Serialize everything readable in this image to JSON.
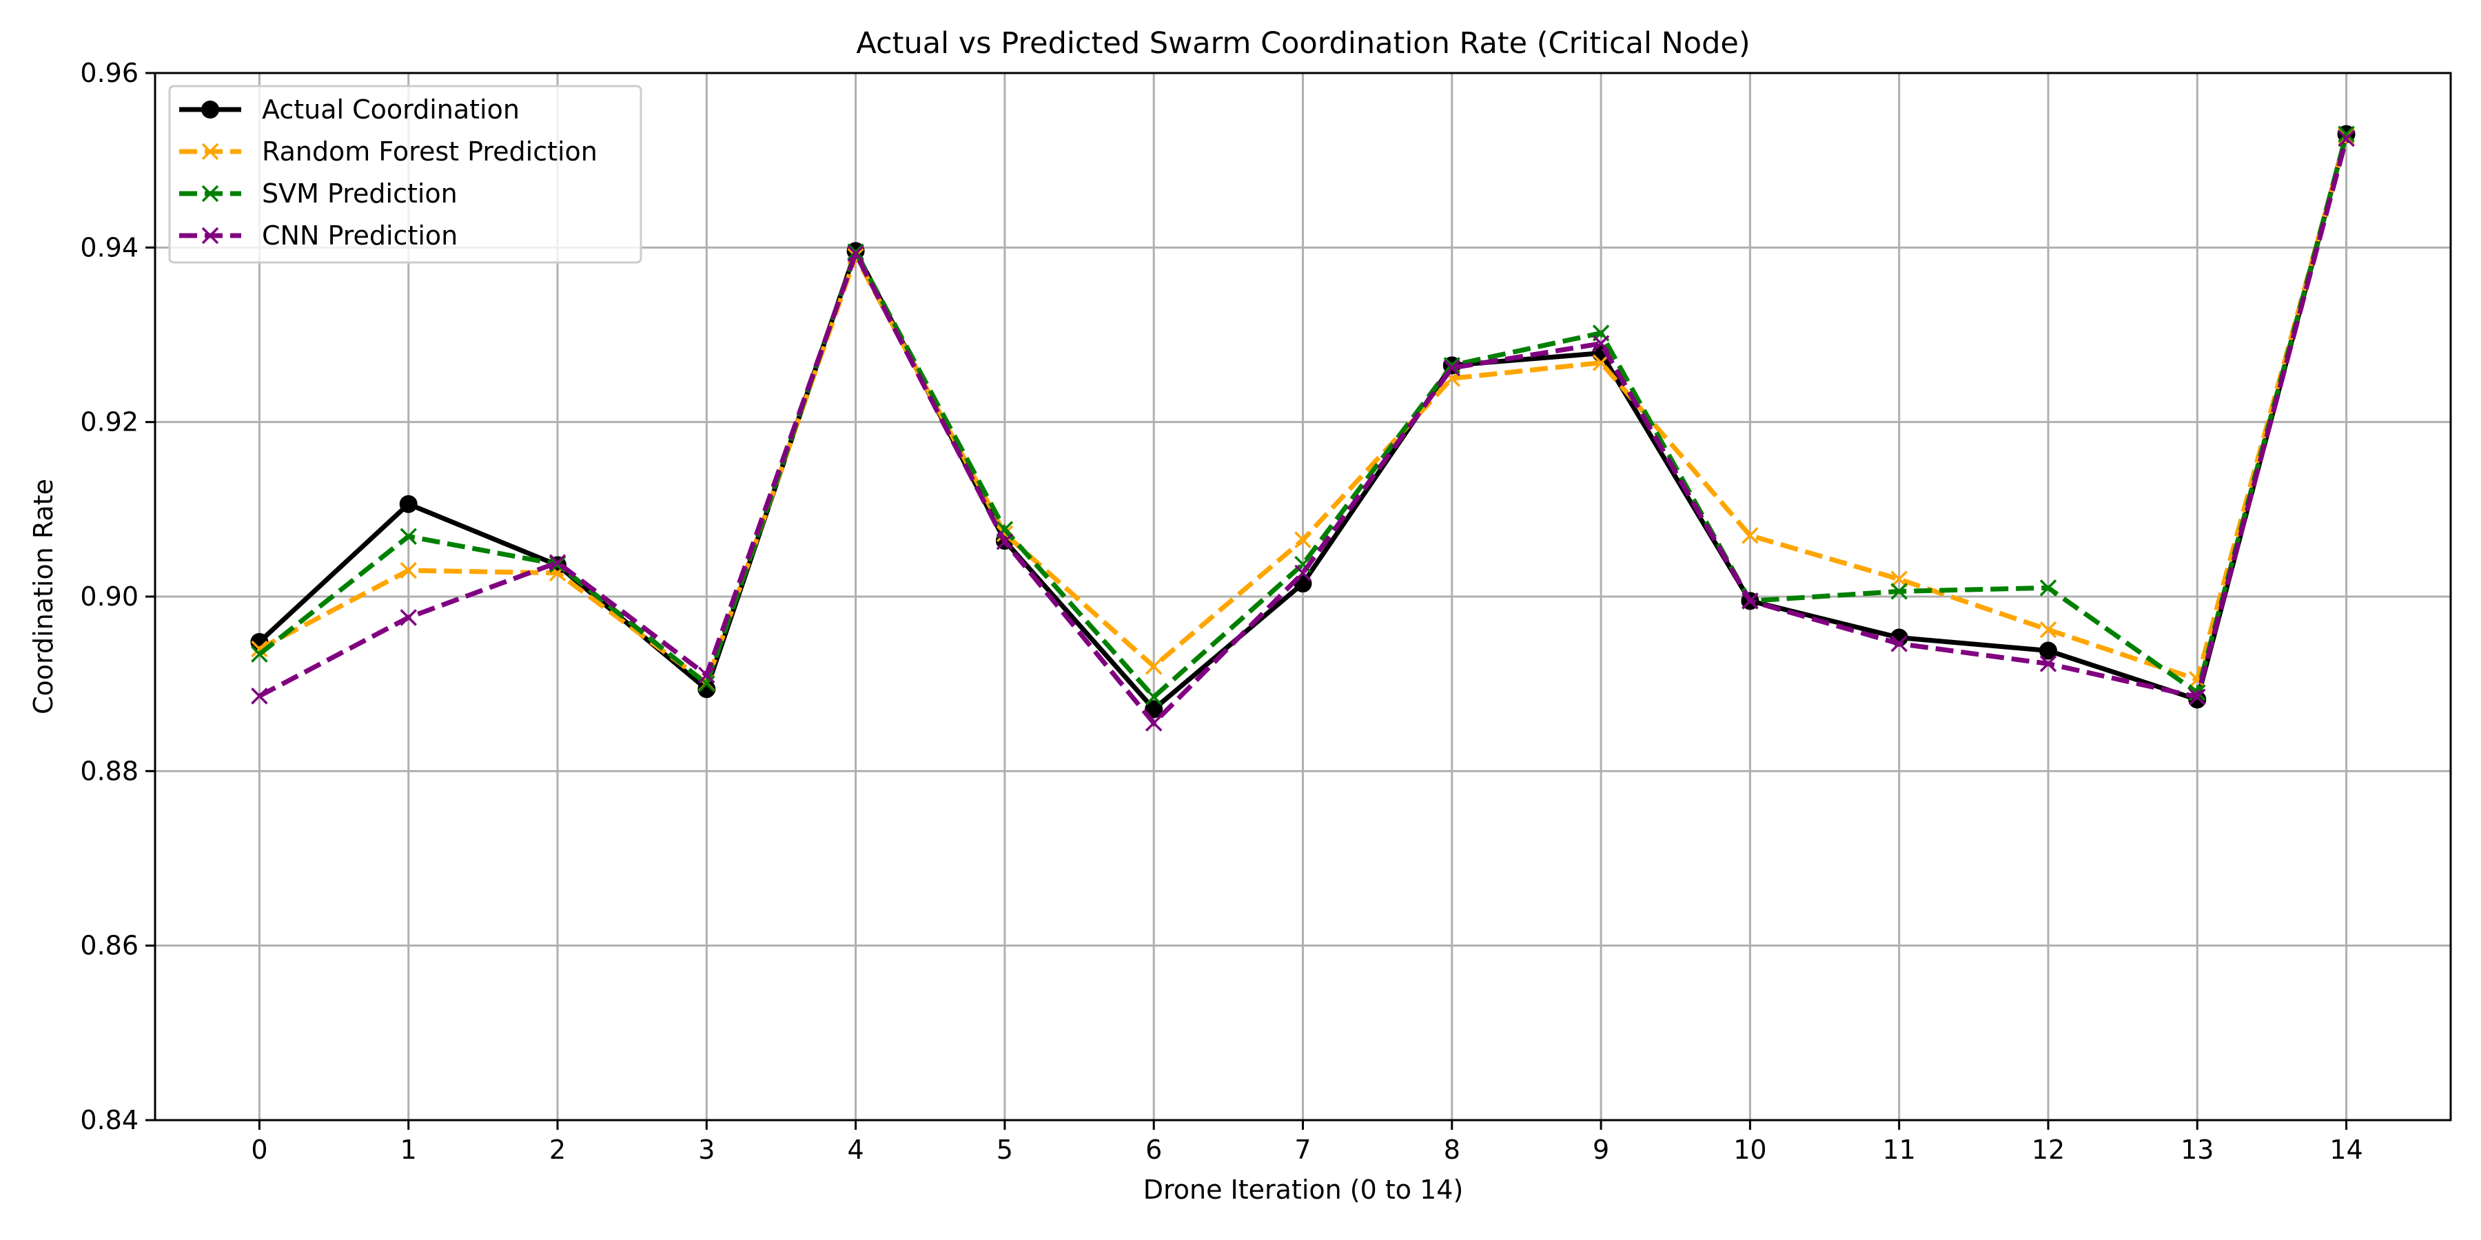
{
  "chart_data": {
    "type": "line",
    "title": "Actual vs Predicted Swarm Coordination Rate (Critical Node)",
    "xlabel": "Drone Iteration (0 to 14)",
    "ylabel": "Coordination Rate",
    "x": [
      0,
      1,
      2,
      3,
      4,
      5,
      6,
      7,
      8,
      9,
      10,
      11,
      12,
      13,
      14
    ],
    "xticks": [
      "0",
      "1",
      "2",
      "3",
      "4",
      "5",
      "6",
      "7",
      "8",
      "9",
      "10",
      "11",
      "12",
      "13",
      "14"
    ],
    "xlim": [
      -0.7,
      14.7
    ],
    "ylim": [
      0.84,
      0.96
    ],
    "yticks": [
      "0.84",
      "0.86",
      "0.88",
      "0.90",
      "0.92",
      "0.94",
      "0.96"
    ],
    "grid": true,
    "legend_position": "upper-left",
    "series": [
      {
        "name": "Actual Coordination",
        "color": "#000000",
        "line_style": "solid",
        "marker": "circle",
        "values": [
          0.8948,
          0.9106,
          0.9036,
          0.8894,
          0.9396,
          0.9064,
          0.8871,
          0.9015,
          0.9265,
          0.9279,
          0.8995,
          0.8953,
          0.8938,
          0.8882,
          0.953
        ]
      },
      {
        "name": "Random Forest Prediction",
        "color": "#ffa500",
        "line_style": "dashed",
        "marker": "x",
        "values": [
          0.894,
          0.903,
          0.9027,
          0.8901,
          0.939,
          0.9072,
          0.892,
          0.9065,
          0.925,
          0.9268,
          0.907,
          0.902,
          0.8962,
          0.8905,
          0.9528
        ]
      },
      {
        "name": "SVM Prediction",
        "color": "#008000",
        "line_style": "dashed",
        "marker": "x",
        "values": [
          0.8934,
          0.9069,
          0.9037,
          0.89,
          0.9395,
          0.9077,
          0.8885,
          0.9037,
          0.9265,
          0.9302,
          0.8995,
          0.9006,
          0.901,
          0.889,
          0.953
        ]
      },
      {
        "name": "CNN Prediction",
        "color": "#800080",
        "line_style": "dashed",
        "marker": "x",
        "values": [
          0.8886,
          0.8976,
          0.9039,
          0.891,
          0.9393,
          0.9063,
          0.8855,
          0.9027,
          0.9262,
          0.929,
          0.8995,
          0.8946,
          0.8923,
          0.8885,
          0.9525
        ]
      }
    ]
  }
}
